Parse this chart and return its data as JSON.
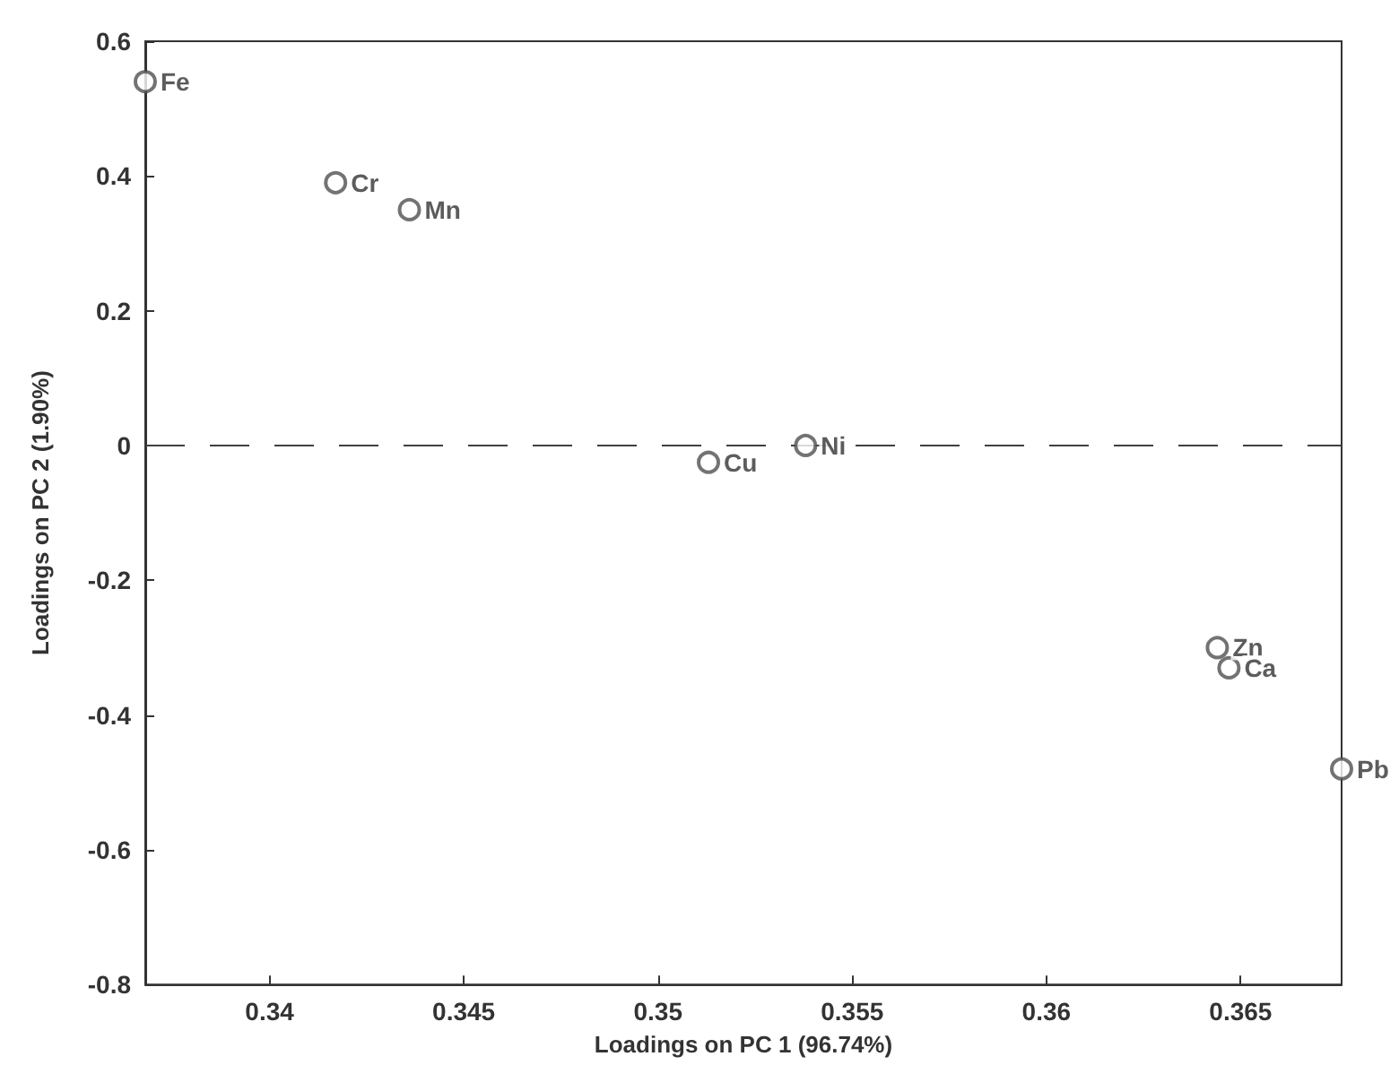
{
  "chart_data": {
    "type": "scatter",
    "xlabel": "Loadings on PC 1 (96.74%)",
    "ylabel": "Loadings on PC 2 (1.90%)",
    "xlim": [
      0.3368,
      0.3676
    ],
    "xticks": [
      0.34,
      0.345,
      0.35,
      0.355,
      0.36,
      0.365
    ],
    "ylim": [
      -0.8,
      0.6
    ],
    "yticks": [
      -0.8,
      -0.6,
      -0.4,
      -0.2,
      0,
      0.2,
      0.4,
      0.6
    ],
    "marker": "circle",
    "grid": false,
    "legend": false,
    "ref_lines": [
      {
        "axis": "y",
        "value": 0,
        "line_style": "dashed",
        "color": "#404040"
      }
    ],
    "series": [
      {
        "name": "Fe",
        "color": "#505050",
        "x": [
          0.3368
        ],
        "values": [
          0.54
        ]
      },
      {
        "name": "Cr",
        "color": "#505050",
        "x": [
          0.3417
        ],
        "values": [
          0.39
        ]
      },
      {
        "name": "Mn",
        "color": "#505050",
        "x": [
          0.3436
        ],
        "values": [
          0.35
        ]
      },
      {
        "name": "Cu",
        "color": "#505050",
        "x": [
          0.3513
        ],
        "values": [
          -0.025
        ]
      },
      {
        "name": "Ni",
        "color": "#505050",
        "x": [
          0.3538
        ],
        "values": [
          0
        ]
      },
      {
        "name": "Zn",
        "color": "#505050",
        "x": [
          0.3644
        ],
        "values": [
          -0.3
        ]
      },
      {
        "name": "Ca",
        "color": "#505050",
        "x": [
          0.3647
        ],
        "values": [
          -0.33
        ]
      },
      {
        "name": "Pb",
        "color": "#505050",
        "x": [
          0.3676
        ],
        "values": [
          -0.48
        ]
      }
    ]
  }
}
